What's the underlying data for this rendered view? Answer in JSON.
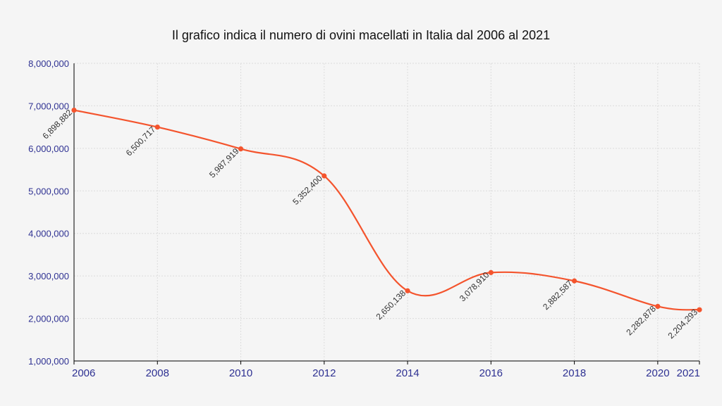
{
  "chart_data": {
    "type": "line",
    "title": "Il grafico indica il numero di ovini macellati in Italia dal 2006 al 2021",
    "xlabel": "",
    "ylabel": "",
    "x": [
      2006,
      2008,
      2010,
      2012,
      2014,
      2016,
      2018,
      2020,
      2021
    ],
    "values": [
      6898882,
      6500717,
      5987919,
      5352400,
      2650138,
      3078910,
      2882587,
      2282878,
      2204293
    ],
    "data_labels": [
      "6,898,882",
      "6,500,717",
      "5,987,919",
      "5,352,400",
      "2,650,138",
      "3,078,910",
      "2,882,587",
      "2,282,878",
      "2,204,293"
    ],
    "x_ticks": [
      "2006",
      "2008",
      "2010",
      "2012",
      "2014",
      "2016",
      "2018",
      "2020",
      "2021"
    ],
    "y_ticks": [
      "1,000,000",
      "2,000,000",
      "3,000,000",
      "4,000,000",
      "5,000,000",
      "6,000,000",
      "7,000,000",
      "8,000,000"
    ],
    "ylim": [
      1000000,
      8000000
    ],
    "xlim": [
      2006,
      2021
    ],
    "grid": true,
    "line_color": "#f4542d",
    "tick_color": "#2e3192",
    "smooth": true
  }
}
